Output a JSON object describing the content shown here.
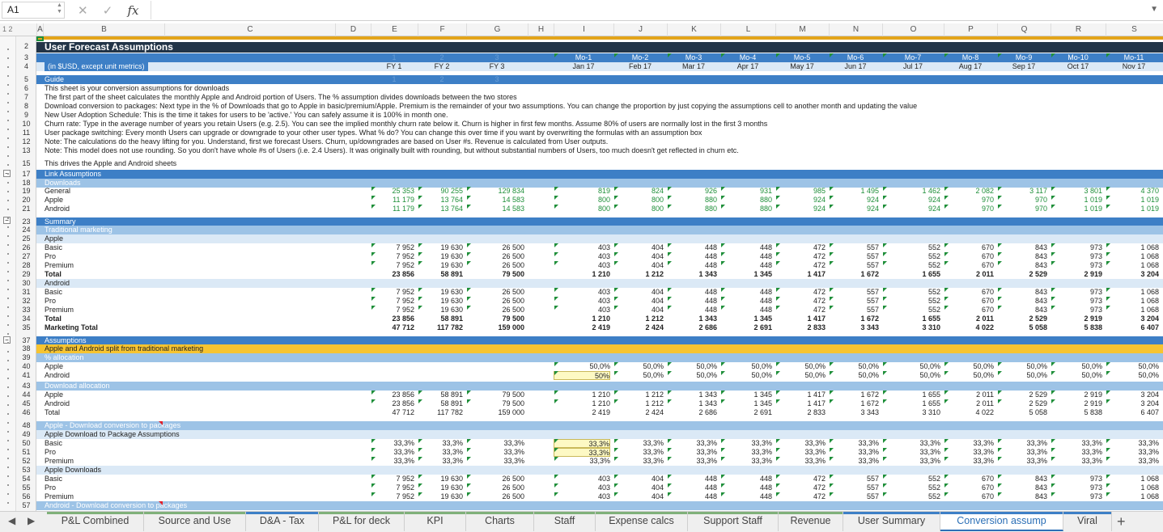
{
  "namebox": "A1",
  "formula_icons": [
    "close-icon",
    "check-icon",
    "fx-icon"
  ],
  "outline_levels": "1 2",
  "columns": [
    "A",
    "B",
    "C",
    "D",
    "E",
    "F",
    "G",
    "H",
    "I",
    "J",
    "K",
    "L",
    "M",
    "N",
    "O",
    "P",
    "Q",
    "R",
    "S"
  ],
  "title": "User Forecast Assumptions",
  "units_note": "(in $USD, except unit metrics)",
  "faded_row3": [
    "1",
    "2",
    "3"
  ],
  "month_labels": [
    "Mo-1",
    "Mo-2",
    "Mo-3",
    "Mo-4",
    "Mo-5",
    "Mo-6",
    "Mo-7",
    "Mo-8",
    "Mo-9",
    "Mo-10",
    "Mo-11"
  ],
  "fy_labels": [
    "FY 1",
    "FY 2",
    "FY 3"
  ],
  "date_labels": [
    "Jan 17",
    "Feb 17",
    "Mar 17",
    "Apr 17",
    "May 17",
    "Jun 17",
    "Jul 17",
    "Aug 17",
    "Sep 17",
    "Oct 17",
    "Nov 17"
  ],
  "guide_label": "Guide",
  "guide_faded": [
    "1",
    "2",
    "3"
  ],
  "guide_lines": [
    "This sheet is your conversion assumptions for downloads",
    "The first part of the sheet calculates the monthly Apple and Android portion of Users. The % assumption divides downloads between the two stores",
    "Download conversion to packages: Next type in the % of Downloads that go to Apple in basic/premium/Apple. Premium is the remainder of your two assumptions. You can change the proportion by just copying the assumptions cell to another month and updating the value",
    "New User Adoption Schedule: This is the time it takes for users to be 'active.' You can safely assume it is 100% in month one.",
    "Churn rate: Type in the average number of years you retain Users (e.g. 2.5). You can see the implied monthly churn rate below it. Churn is higher in first few months. Assume 80% of users are normally lost in the first 3 months",
    "User package switching: Every month Users can upgrade or downgrade to your other user types. What % do? You can change this over time if you want by overwriting the formulas with an assumption box",
    "Note: The calculations do the heavy lifting for you. Understand, first we forecast Users. Churn, up/downgrades are based on User #s.  Revenue is calculated from User outputs.",
    "Note: This model does not use rounding. So you don't have whole #s of Users (i.e. 2.4 Users). It was originally built with rounding, but without substantial numbers of Users, too much doesn't get reflected in churn etc."
  ],
  "drives_text": "This drives the Apple and Android sheets",
  "link_assumptions": "Link Assumptions",
  "downloads_label": "Downloads",
  "downloads": [
    {
      "label": "General",
      "fy": [
        "25 353",
        "90 255",
        "129 834"
      ],
      "m": [
        "819",
        "824",
        "926",
        "931",
        "985",
        "1 495",
        "1 462",
        "2 082",
        "3 117",
        "3 801",
        "4 370"
      ]
    },
    {
      "label": "Apple",
      "fy": [
        "11 179",
        "13 764",
        "14 583"
      ],
      "m": [
        "800",
        "800",
        "880",
        "880",
        "924",
        "924",
        "924",
        "970",
        "970",
        "1 019",
        "1 019"
      ]
    },
    {
      "label": "Android",
      "fy": [
        "11 179",
        "13 764",
        "14 583"
      ],
      "m": [
        "800",
        "800",
        "880",
        "880",
        "924",
        "924",
        "924",
        "970",
        "970",
        "1 019",
        "1 019"
      ]
    }
  ],
  "summary_label": "Summary",
  "trad_label": "Traditional marketing",
  "apple_label": "Apple",
  "android_label": "Android",
  "pkg_rows": [
    {
      "label": "Basic",
      "fy": [
        "7 952",
        "19 630",
        "26 500"
      ],
      "m": [
        "403",
        "404",
        "448",
        "448",
        "472",
        "557",
        "552",
        "670",
        "843",
        "973",
        "1 068"
      ]
    },
    {
      "label": "Pro",
      "fy": [
        "7 952",
        "19 630",
        "26 500"
      ],
      "m": [
        "403",
        "404",
        "448",
        "448",
        "472",
        "557",
        "552",
        "670",
        "843",
        "973",
        "1 068"
      ]
    },
    {
      "label": "Premium",
      "fy": [
        "7 952",
        "19 630",
        "26 500"
      ],
      "m": [
        "403",
        "404",
        "448",
        "448",
        "472",
        "557",
        "552",
        "670",
        "843",
        "973",
        "1 068"
      ]
    },
    {
      "label": "Total",
      "fy": [
        "23 856",
        "58 891",
        "79 500"
      ],
      "m": [
        "1 210",
        "1 212",
        "1 343",
        "1 345",
        "1 417",
        "1 672",
        "1 655",
        "2 011",
        "2 529",
        "2 919",
        "3 204"
      ]
    }
  ],
  "marketing_total": {
    "label": "Marketing Total",
    "fy": [
      "47 712",
      "117 782",
      "159 000"
    ],
    "m": [
      "2 419",
      "2 424",
      "2 686",
      "2 691",
      "2 833",
      "3 343",
      "3 310",
      "4 022",
      "5 058",
      "5 838",
      "6 407"
    ]
  },
  "assumptions_label": "Assumptions",
  "split_label": "Apple and Android split from traditional marketing",
  "pct_alloc_label": "% allocation",
  "alloc": [
    {
      "label": "Apple",
      "m": [
        "50,0%",
        "50,0%",
        "50,0%",
        "50,0%",
        "50,0%",
        "50,0%",
        "50,0%",
        "50,0%",
        "50,0%",
        "50,0%",
        "50,0%"
      ]
    },
    {
      "label": "Android",
      "m": [
        "50%",
        "50,0%",
        "50,0%",
        "50,0%",
        "50,0%",
        "50,0%",
        "50,0%",
        "50,0%",
        "50,0%",
        "50,0%",
        "50,0%"
      ]
    }
  ],
  "dl_alloc_label": "Download allocation",
  "dl_alloc": [
    {
      "label": "Apple",
      "fy": [
        "23 856",
        "58 891",
        "79 500"
      ],
      "m": [
        "1 210",
        "1 212",
        "1 343",
        "1 345",
        "1 417",
        "1 672",
        "1 655",
        "2 011",
        "2 529",
        "2 919",
        "3 204"
      ]
    },
    {
      "label": "Android",
      "fy": [
        "23 856",
        "58 891",
        "79 500"
      ],
      "m": [
        "1 210",
        "1 212",
        "1 343",
        "1 345",
        "1 417",
        "1 672",
        "1 655",
        "2 011",
        "2 529",
        "2 919",
        "3 204"
      ]
    },
    {
      "label": "Total",
      "fy": [
        "47 712",
        "117 782",
        "159 000"
      ],
      "m": [
        "2 419",
        "2 424",
        "2 686",
        "2 691",
        "2 833",
        "3 343",
        "3 310",
        "4 022",
        "5 058",
        "5 838",
        "6 407"
      ]
    }
  ],
  "apple_conv_label": "Apple - Download conversion to packages",
  "apple_pkg_assump_label": "Apple Download to Package Assumptions",
  "conv_rows": [
    {
      "label": "Basic",
      "fy": [
        "33,3%",
        "33,3%",
        "33,3%"
      ],
      "m": [
        "33,3%",
        "33,3%",
        "33,3%",
        "33,3%",
        "33,3%",
        "33,3%",
        "33,3%",
        "33,3%",
        "33,3%",
        "33,3%",
        "33,3%"
      ]
    },
    {
      "label": "Pro",
      "fy": [
        "33,3%",
        "33,3%",
        "33,3%"
      ],
      "m": [
        "33,3%",
        "33,3%",
        "33,3%",
        "33,3%",
        "33,3%",
        "33,3%",
        "33,3%",
        "33,3%",
        "33,3%",
        "33,3%",
        "33,3%"
      ]
    },
    {
      "label": "Premium",
      "fy": [
        "33,3%",
        "33,3%",
        "33,3%"
      ],
      "m": [
        "33,3%",
        "33,3%",
        "33,3%",
        "33,3%",
        "33,3%",
        "33,3%",
        "33,3%",
        "33,3%",
        "33,3%",
        "33,3%",
        "33,3%"
      ]
    }
  ],
  "apple_dl_label": "Apple Downloads",
  "apple_dl_rows": [
    {
      "label": "Basic",
      "fy": [
        "7 952",
        "19 630",
        "26 500"
      ],
      "m": [
        "403",
        "404",
        "448",
        "448",
        "472",
        "557",
        "552",
        "670",
        "843",
        "973",
        "1 068"
      ]
    },
    {
      "label": "Pro",
      "fy": [
        "7 952",
        "19 630",
        "26 500"
      ],
      "m": [
        "403",
        "404",
        "448",
        "448",
        "472",
        "557",
        "552",
        "670",
        "843",
        "973",
        "1 068"
      ]
    },
    {
      "label": "Premium",
      "fy": [
        "7 952",
        "19 630",
        "26 500"
      ],
      "m": [
        "403",
        "404",
        "448",
        "448",
        "472",
        "557",
        "552",
        "670",
        "843",
        "973",
        "1 068"
      ]
    }
  ],
  "android_conv_label": "Android - Download conversion to packages",
  "tabs": [
    "P&L Combined",
    "Source and Use",
    "D&A - Tax",
    "P&L for deck",
    "KPI",
    "Charts",
    "Staff",
    "Expense calcs",
    "Support Staff",
    "Revenue",
    "User Summary",
    "Conversion assump",
    "Viral"
  ],
  "active_tab": "Conversion assump",
  "tab_colors": [
    "#7fb07a",
    "#7fb07a",
    "#3d7fc6",
    "#7fb07a",
    "#7fb07a",
    "#7fb07a",
    "#7fb07a",
    "#7fb07a",
    "#7fb07a",
    "#7fb07a",
    "#3d7fc6",
    "#3d7fc6",
    "#3d7fc6"
  ],
  "nav_icons": [
    "prev-sheet-icon",
    "next-sheet-icon",
    "add-sheet-icon"
  ]
}
